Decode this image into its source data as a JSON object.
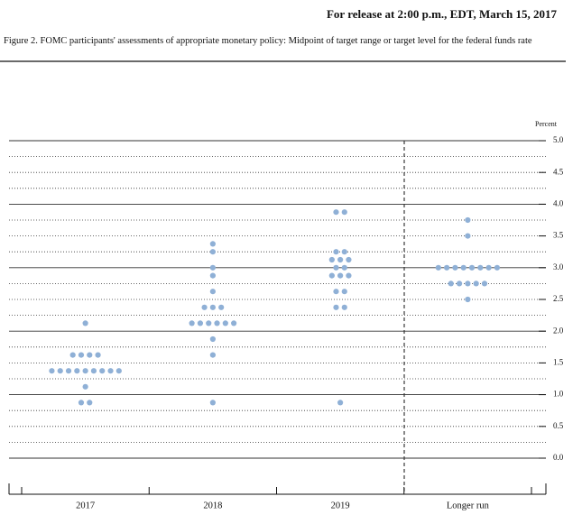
{
  "header": "For release at 2:00 p.m., EDT, March 15, 2017",
  "chart_data": {
    "type": "dot",
    "title": "Figure 2. FOMC participants' assessments of appropriate monetary policy: Midpoint of target range or target level for the federal funds rate",
    "y_label": "Percent",
    "categories": [
      "2017",
      "2018",
      "2019",
      "Longer run"
    ],
    "color": "#8fb0d6",
    "values": [
      {
        "levels": [
          0.875,
          1.125,
          1.375,
          1.625,
          2.125
        ],
        "counts": [
          2,
          1,
          9,
          4,
          1
        ]
      },
      {
        "levels": [
          0.875,
          1.625,
          1.875,
          2.125,
          2.375,
          2.625,
          2.875,
          3.0,
          3.25,
          3.375
        ],
        "counts": [
          1,
          1,
          1,
          6,
          3,
          1,
          1,
          1,
          1,
          1
        ]
      },
      {
        "levels": [
          0.875,
          2.375,
          2.625,
          2.875,
          3.0,
          3.125,
          3.25,
          3.875
        ],
        "counts": [
          1,
          2,
          2,
          3,
          2,
          3,
          2,
          2
        ]
      },
      {
        "levels": [
          2.5,
          2.75,
          3.0,
          3.5,
          3.75
        ],
        "counts": [
          1,
          5,
          8,
          1,
          1
        ]
      }
    ],
    "ylim": [
      0,
      5
    ],
    "yticks": [
      {
        "value": 0,
        "label": "0.0"
      },
      0.5,
      {
        "value": 1,
        "label": "1.0"
      },
      1.5,
      {
        "value": 2,
        "label": "2.0"
      },
      2.5,
      {
        "value": 3,
        "label": "3.0"
      },
      3.5,
      {
        "value": 4,
        "label": "4.0"
      },
      4.5,
      {
        "value": 5,
        "label": "5.0"
      }
    ],
    "minor_yticks": [
      0.25,
      0.75,
      1.25,
      1.75,
      2.25,
      2.75,
      3.25,
      3.75,
      4.25,
      4.75
    ],
    "grid": true
  }
}
